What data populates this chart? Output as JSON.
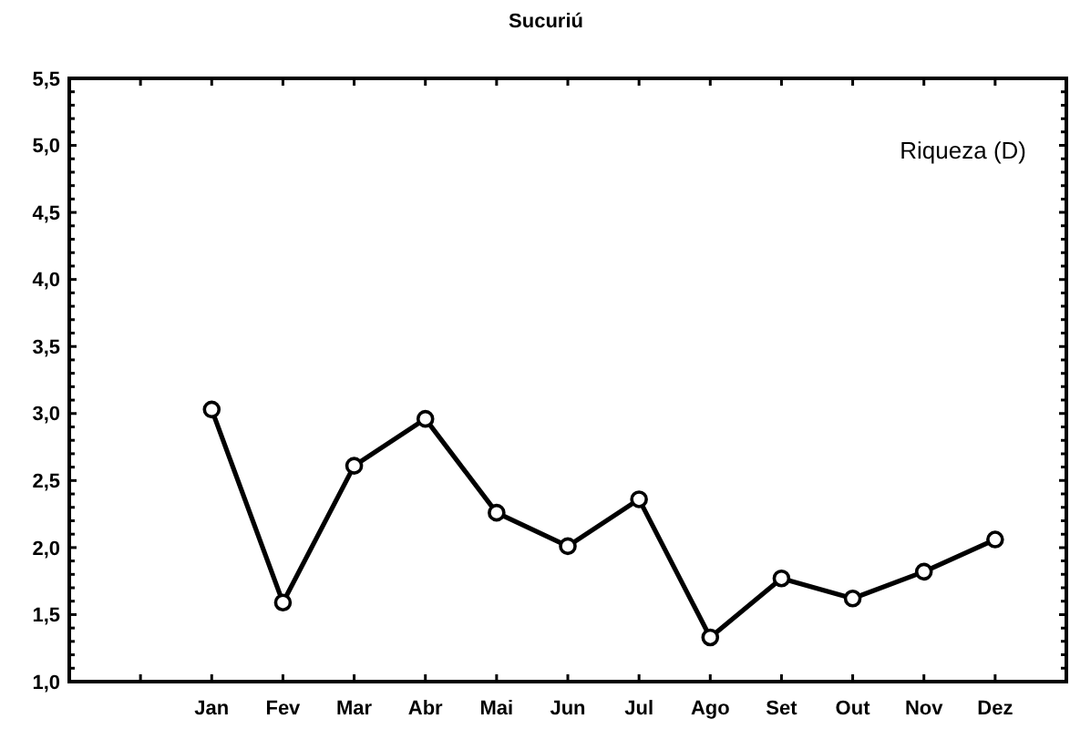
{
  "chart_data": {
    "type": "line",
    "title": "Sucuriú",
    "categories": [
      null,
      null,
      "Jan",
      "Fev",
      "Mar",
      "Abr",
      "Mai",
      "Jun",
      "Jul",
      "Ago",
      "Set",
      "Out",
      "Nov",
      "Dez",
      null
    ],
    "series": [
      {
        "name": "Riqueza (D)",
        "color": "#000000",
        "values": [
          null,
          null,
          3.03,
          1.59,
          2.61,
          2.96,
          2.26,
          2.01,
          2.36,
          1.33,
          1.77,
          1.62,
          1.82,
          2.06,
          null
        ]
      }
    ],
    "ylim": [
      1.0,
      5.5
    ],
    "yticks": [
      {
        "value": 1.0,
        "label": "1,0"
      },
      {
        "value": 1.1,
        "label": null
      },
      {
        "value": 1.2,
        "label": null
      },
      {
        "value": 1.3,
        "label": null
      },
      {
        "value": 1.4,
        "label": null
      },
      {
        "value": 1.5,
        "label": "1,5"
      },
      {
        "value": 1.6,
        "label": null
      },
      {
        "value": 1.7,
        "label": null
      },
      {
        "value": 1.8,
        "label": null
      },
      {
        "value": 1.9,
        "label": null
      },
      {
        "value": 2.0,
        "label": "2,0"
      },
      {
        "value": 2.1,
        "label": null
      },
      {
        "value": 2.2,
        "label": null
      },
      {
        "value": 2.3,
        "label": null
      },
      {
        "value": 2.4,
        "label": null
      },
      {
        "value": 2.5,
        "label": "2,5"
      },
      {
        "value": 2.6,
        "label": null
      },
      {
        "value": 2.7,
        "label": null
      },
      {
        "value": 2.8,
        "label": null
      },
      {
        "value": 2.9,
        "label": null
      },
      {
        "value": 3.0,
        "label": "3,0"
      },
      {
        "value": 3.1,
        "label": null
      },
      {
        "value": 3.2,
        "label": null
      },
      {
        "value": 3.3,
        "label": null
      },
      {
        "value": 3.4,
        "label": null
      },
      {
        "value": 3.5,
        "label": "3,5"
      },
      {
        "value": 3.6,
        "label": null
      },
      {
        "value": 3.7,
        "label": null
      },
      {
        "value": 3.8,
        "label": null
      },
      {
        "value": 3.9,
        "label": null
      },
      {
        "value": 4.0,
        "label": "4,0"
      },
      {
        "value": 4.1,
        "label": null
      },
      {
        "value": 4.2,
        "label": null
      },
      {
        "value": 4.3,
        "label": null
      },
      {
        "value": 4.4,
        "label": null
      },
      {
        "value": 4.5,
        "label": "4,5"
      },
      {
        "value": 4.6,
        "label": null
      },
      {
        "value": 4.7,
        "label": null
      },
      {
        "value": 4.8,
        "label": null
      },
      {
        "value": 4.9,
        "label": null
      },
      {
        "value": 5.0,
        "label": "5,0"
      },
      {
        "value": 5.1,
        "label": null
      },
      {
        "value": 5.2,
        "label": null
      },
      {
        "value": 5.3,
        "label": null
      },
      {
        "value": 5.4,
        "label": null
      },
      {
        "value": 5.5,
        "label": "5,5"
      }
    ],
    "grid": false,
    "legend": "top right",
    "marker": "circle",
    "line_style": "solid"
  }
}
